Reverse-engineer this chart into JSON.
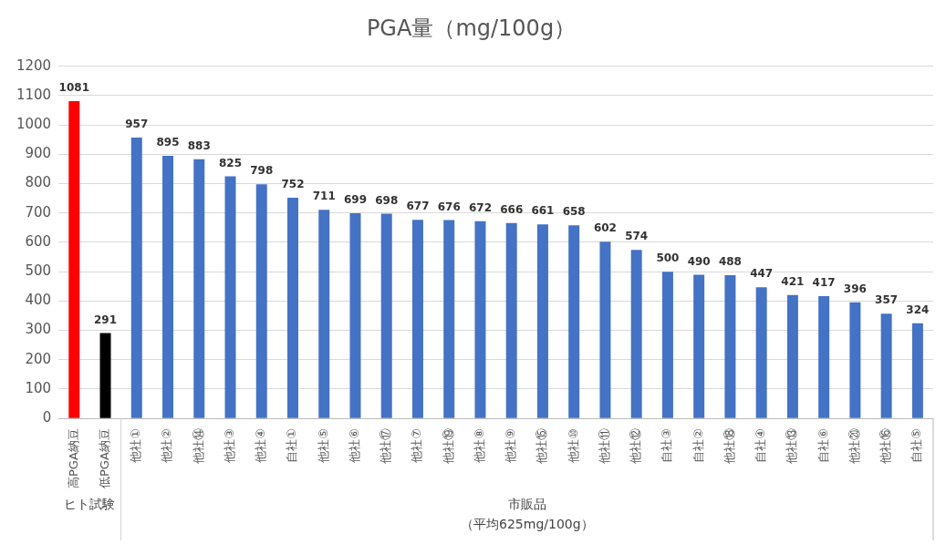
{
  "chart_data": {
    "type": "bar",
    "title": "PGA量（mg/100g）",
    "categories": [
      "高PGA納豆",
      "低PGA納豆",
      "他社①",
      "他社②",
      "他社⑭",
      "他社③",
      "他社④",
      "自社①",
      "他社⑤",
      "他社⑥",
      "他社⑰",
      "他社⑦",
      "他社⑲",
      "他社⑧",
      "他社⑨",
      "他社⑮",
      "他社⑩",
      "他社⑪",
      "他社⑫",
      "自社③",
      "自社②",
      "他社⑱",
      "自社④",
      "他社⑬",
      "自社⑥",
      "他社⑳",
      "他社⑯",
      "自社⑤"
    ],
    "values": [
      1081,
      291,
      957,
      895,
      883,
      825,
      798,
      752,
      711,
      699,
      698,
      677,
      676,
      672,
      666,
      661,
      658,
      602,
      574,
      500,
      490,
      488,
      447,
      421,
      417,
      396,
      357,
      324
    ],
    "colors": [
      "#ff0000",
      "#000000",
      "#4472c4",
      "#4472c4",
      "#4472c4",
      "#4472c4",
      "#4472c4",
      "#4472c4",
      "#4472c4",
      "#4472c4",
      "#4472c4",
      "#4472c4",
      "#4472c4",
      "#4472c4",
      "#4472c4",
      "#4472c4",
      "#4472c4",
      "#4472c4",
      "#4472c4",
      "#4472c4",
      "#4472c4",
      "#4472c4",
      "#4472c4",
      "#4472c4",
      "#4472c4",
      "#4472c4",
      "#4472c4",
      "#4472c4"
    ],
    "ylim": [
      0,
      1200
    ],
    "yticks": [
      0,
      100,
      200,
      300,
      400,
      500,
      600,
      700,
      800,
      900,
      1000,
      1100,
      1200
    ],
    "grid": "y",
    "legend": false,
    "data_labels": true,
    "annotations": [
      "ヒト試験",
      "市販品",
      "（平均625mg/100g）"
    ]
  }
}
